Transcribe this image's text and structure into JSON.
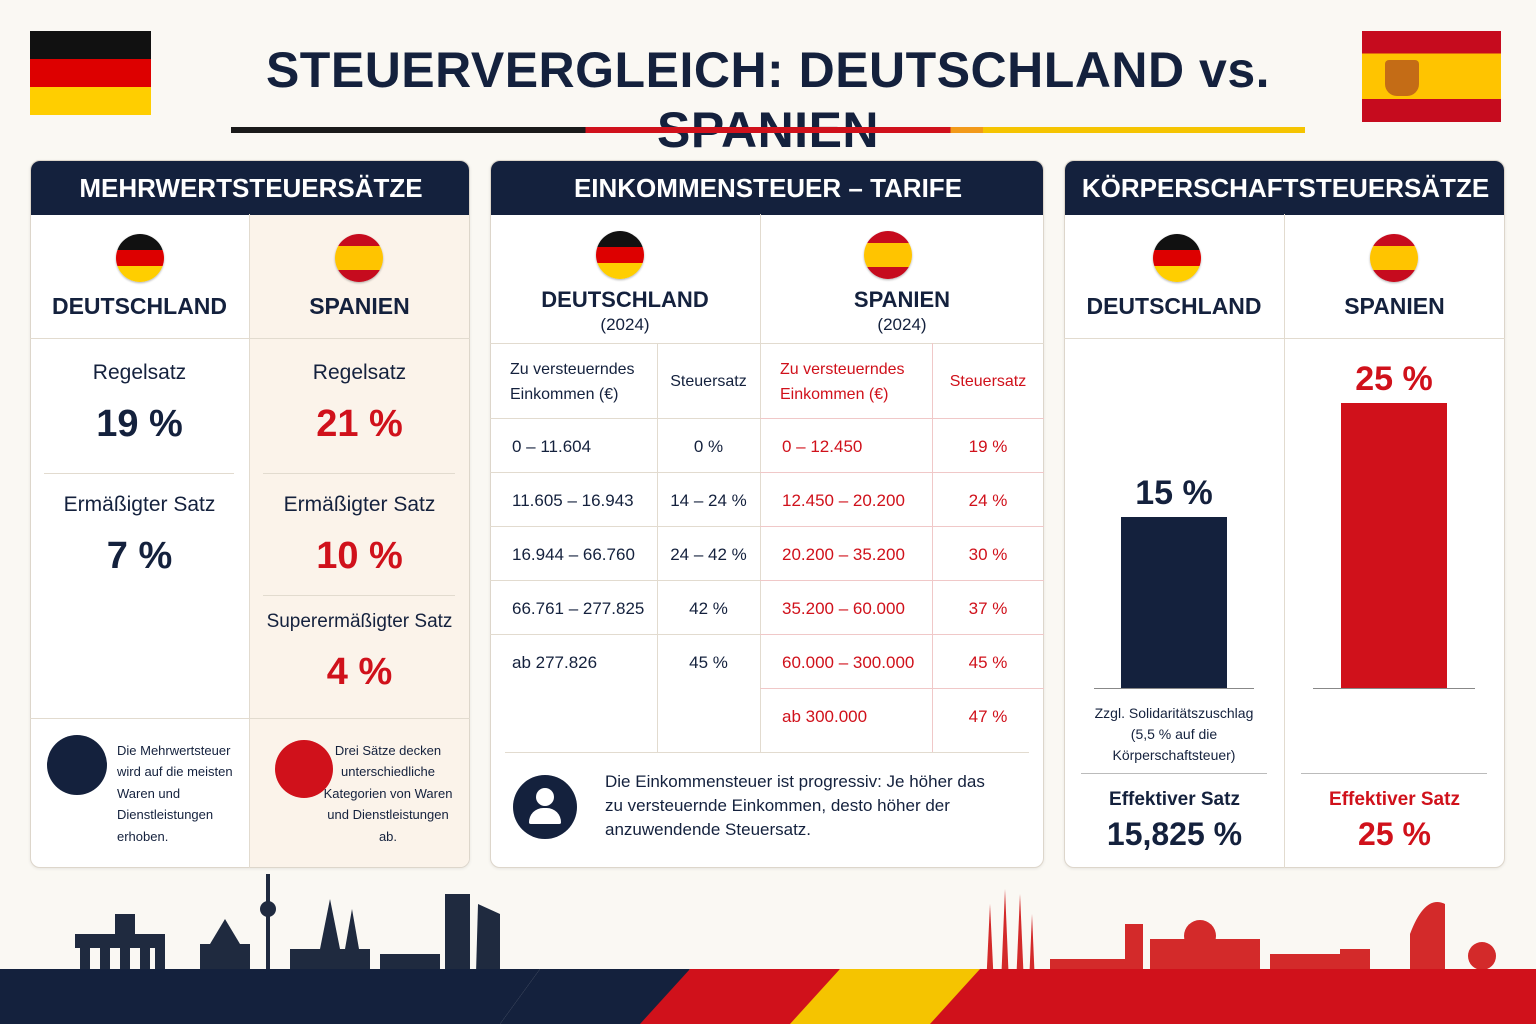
{
  "header": {
    "title": "STEUERVERGLEICH: DEUTSCHLAND vs. SPANIEN"
  },
  "vat": {
    "title": "MEHRWERTSTEUERSÄTZE",
    "germany": {
      "name": "DEUTSCHLAND",
      "rates": [
        {
          "label": "Regelsatz",
          "value": "19 %"
        },
        {
          "label": "Ermäßigter Satz",
          "value": "7 %"
        }
      ],
      "note": "Die Mehrwertsteuer\nwird auf die meisten\nWaren und\nDienstleistungen\nerhoben."
    },
    "spain": {
      "name": "SPANIEN",
      "rates": [
        {
          "label": "Regelsatz",
          "value": "21 %"
        },
        {
          "label": "Ermäßigter Satz",
          "value": "10 %"
        },
        {
          "label": "Superermäßigter Satz",
          "value": "4 %"
        }
      ],
      "note": "Drei Sätze decken\nunterschiedliche\nKategorien von Waren\nund Dienstleistungen ab."
    }
  },
  "income": {
    "title": "EINKOMMENSTEUER – TARIFE",
    "germany": {
      "name": "DEUTSCHLAND",
      "year": "(2024)",
      "columns": [
        "Zu versteuerndes\nEinkommen (€)",
        "Steuersatz"
      ],
      "rows": [
        [
          "0 – 11.604",
          "0 %"
        ],
        [
          "11.605 – 16.943",
          "14 – 24 %"
        ],
        [
          "16.944 – 66.760",
          "24 – 42 %"
        ],
        [
          "66.761 – 277.825",
          "42 %"
        ],
        [
          "ab 277.826",
          "45 %"
        ]
      ]
    },
    "spain": {
      "name": "SPANIEN",
      "year": "(2024)",
      "columns": [
        "Zu versteuerndes\nEinkommen (€)",
        "Steuersatz"
      ],
      "rows": [
        [
          "0 – 12.450",
          "19 %"
        ],
        [
          "12.450 – 20.200",
          "24 %"
        ],
        [
          "20.200 – 35.200",
          "30 %"
        ],
        [
          "35.200 – 60.000",
          "37 %"
        ],
        [
          "60.000 – 300.000",
          "45 %"
        ],
        [
          "ab 300.000",
          "47 %"
        ]
      ]
    },
    "note": "Die Einkommensteuer ist progressiv: Je höher das\nzu versteuernde Einkommen, desto höher der\nanzuwendende Steuersatz."
  },
  "corporate": {
    "title": "KÖRPERSCHAFTSTEUERSÄTZE",
    "germany": {
      "name": "DEUTSCHLAND",
      "bar": {
        "value": 15,
        "label": "15 %"
      },
      "note": "Zzgl. Solidaritätszuschlag\n(5,5 % auf die\nKörperschaftsteuer)",
      "effective_label": "Effektiver Satz",
      "effective": "15,825 %"
    },
    "spain": {
      "name": "SPANIEN",
      "bar": {
        "value": 25,
        "label": "25 %"
      },
      "effective_label": "Effektiver Satz",
      "effective": "25 %"
    }
  }
}
